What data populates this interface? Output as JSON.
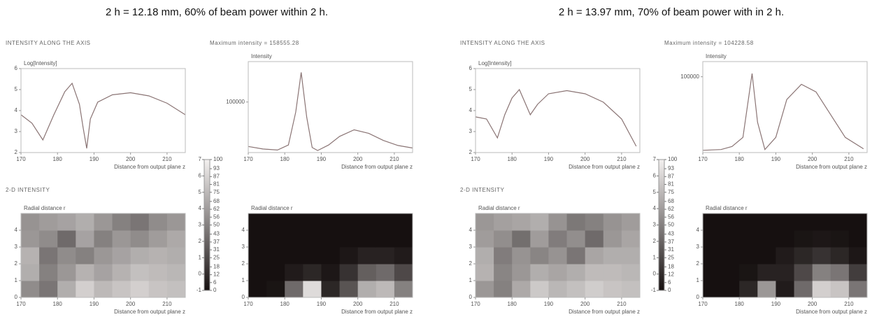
{
  "captions": [
    "2 h = 12.18 mm, 60% of beam power within 2 h.",
    "2 h = 13.97 mm, 70% of beam power with in 2 h."
  ],
  "chart_data": [
    {
      "type": "line",
      "title": "INTENSITY ALONG THE AXIS",
      "ylabel": "Log[Intensity]",
      "xlabel": "Distance from output plane z",
      "x": [
        170,
        173,
        176,
        179,
        182,
        184,
        186,
        187,
        188,
        189,
        191,
        195,
        200,
        205,
        210,
        215
      ],
      "series": [
        {
          "color": "#8a7474",
          "values": [
            3.8,
            3.4,
            2.6,
            3.8,
            4.9,
            5.3,
            4.3,
            3.2,
            2.2,
            3.6,
            4.4,
            4.75,
            4.85,
            4.7,
            4.35,
            3.8
          ]
        }
      ],
      "xlim": [
        170,
        215
      ],
      "xticks": [
        170,
        180,
        190,
        200,
        210
      ],
      "ylim": [
        2,
        6
      ],
      "yticks": [
        2,
        3,
        4,
        5,
        6
      ]
    },
    {
      "type": "line",
      "title": "Maximum intensity = 158555.28",
      "ylabel": "Intensity",
      "xlabel": "Distance from output plane z",
      "x": [
        170,
        174,
        178,
        181,
        183,
        184.5,
        186,
        187.5,
        189,
        192,
        195,
        199,
        203,
        207,
        211,
        215
      ],
      "series": [
        {
          "color": "#8a7474",
          "values": [
            12000,
            7000,
            5000,
            15000,
            80000,
            158555,
            70000,
            10000,
            4000,
            15000,
            32000,
            45000,
            38000,
            24000,
            14000,
            9000
          ]
        }
      ],
      "xlim": [
        170,
        215
      ],
      "xticks": [
        170,
        180,
        190,
        200,
        210
      ],
      "ylim": [
        0,
        180000
      ],
      "yticks": [
        100000
      ]
    },
    {
      "type": "heatmap",
      "title": "2-D INTENSITY",
      "ylabel": "Radial distance r",
      "xlabel": "Distance from output plane z",
      "xlim": [
        170,
        215
      ],
      "xticks": [
        170,
        180,
        190,
        200,
        210
      ],
      "ylim": [
        0,
        5
      ],
      "yticks": [
        0,
        1,
        2,
        3,
        4
      ],
      "zlim": [
        0,
        100
      ],
      "colormap": [
        "#161010",
        "#f4f1f0"
      ],
      "z": [
        [
          55,
          45,
          70,
          85,
          75,
          80,
          85,
          80,
          78
        ],
        [
          70,
          50,
          60,
          72,
          65,
          72,
          78,
          76,
          74
        ],
        [
          72,
          45,
          55,
          50,
          60,
          65,
          70,
          72,
          70
        ],
        [
          60,
          55,
          40,
          65,
          50,
          60,
          55,
          62,
          68
        ],
        [
          58,
          62,
          65,
          70,
          60,
          50,
          45,
          55,
          60
        ]
      ]
    },
    {
      "type": "heatmap",
      "ylabel": "Radial distance r",
      "xlabel": "Distance from output plane z",
      "xlim": [
        170,
        215
      ],
      "xticks": [
        170,
        180,
        190,
        200,
        210
      ],
      "ylim": [
        0,
        5
      ],
      "yticks": [
        0,
        1,
        2,
        3,
        4
      ],
      "zlim": [
        0,
        100
      ],
      "colormap": [
        "#161010",
        "#f4f1f0"
      ],
      "z": [
        [
          0,
          2,
          40,
          90,
          10,
          30,
          70,
          75,
          50
        ],
        [
          0,
          0,
          5,
          10,
          3,
          15,
          35,
          40,
          25
        ],
        [
          0,
          0,
          0,
          0,
          0,
          3,
          8,
          8,
          5
        ],
        [
          0,
          0,
          0,
          0,
          0,
          0,
          0,
          0,
          0
        ],
        [
          0,
          0,
          0,
          0,
          0,
          0,
          0,
          0,
          0
        ]
      ],
      "colorbar": {
        "lim": [
          0,
          100
        ],
        "ticks": [
          100,
          93,
          87,
          81,
          75,
          68,
          62,
          56,
          50,
          43,
          37,
          31,
          25,
          18,
          12,
          6,
          0
        ],
        "log_lim": [
          -1,
          7
        ],
        "log_ticks": [
          7,
          6,
          5,
          4,
          3,
          2,
          1,
          0,
          -1
        ]
      }
    },
    {
      "type": "line",
      "title": "INTENSITY ALONG THE AXIS",
      "ylabel": "Log[Intensity]",
      "xlabel": "Distance from output plane z",
      "x": [
        170,
        173,
        176,
        178,
        180,
        182,
        184,
        185,
        187,
        190,
        195,
        200,
        205,
        210,
        214
      ],
      "series": [
        {
          "color": "#8a7474",
          "values": [
            3.7,
            3.6,
            2.7,
            3.8,
            4.6,
            5.0,
            4.2,
            3.8,
            4.3,
            4.8,
            4.95,
            4.8,
            4.4,
            3.6,
            2.3
          ]
        }
      ],
      "xlim": [
        170,
        215
      ],
      "xticks": [
        170,
        180,
        190,
        200,
        210
      ],
      "ylim": [
        2,
        6
      ],
      "yticks": [
        2,
        3,
        4,
        5,
        6
      ]
    },
    {
      "type": "line",
      "title": "Maximum intensity = 104228.58",
      "ylabel": "Intensity",
      "xlabel": "Distance from output plane z",
      "x": [
        170,
        175,
        178,
        181,
        183.5,
        185,
        187,
        190,
        193,
        197,
        201,
        205,
        209,
        214
      ],
      "series": [
        {
          "color": "#8a7474",
          "values": [
            3000,
            4000,
            8000,
            20000,
            104228,
            40000,
            4000,
            20000,
            70000,
            90000,
            80000,
            50000,
            20000,
            5000
          ]
        }
      ],
      "xlim": [
        170,
        215
      ],
      "xticks": [
        170,
        180,
        190,
        200,
        210
      ],
      "ylim": [
        0,
        120000
      ],
      "yticks": [
        100000
      ]
    },
    {
      "type": "heatmap",
      "title": "2-D INTENSITY",
      "ylabel": "Radial distance r",
      "xlabel": "Distance from output plane z",
      "xlim": [
        170,
        215
      ],
      "xticks": [
        170,
        180,
        190,
        200,
        210
      ],
      "ylim": [
        0,
        5
      ],
      "yticks": [
        0,
        1,
        2,
        3,
        4
      ],
      "zlim": [
        0,
        100
      ],
      "colormap": [
        "#161010",
        "#f4f1f0"
      ],
      "z": [
        [
          60,
          50,
          68,
          82,
          74,
          78,
          84,
          80,
          78
        ],
        [
          72,
          52,
          60,
          70,
          66,
          70,
          76,
          76,
          74
        ],
        [
          70,
          48,
          58,
          52,
          58,
          45,
          66,
          70,
          70
        ],
        [
          62,
          56,
          42,
          62,
          48,
          56,
          40,
          60,
          66
        ],
        [
          60,
          64,
          66,
          70,
          58,
          46,
          50,
          58,
          62
        ]
      ]
    },
    {
      "type": "heatmap",
      "ylabel": "Radial distance r",
      "xlabel": "Distance from output plane z",
      "xlim": [
        170,
        215
      ],
      "xticks": [
        170,
        180,
        190,
        200,
        210
      ],
      "ylim": [
        0,
        5
      ],
      "yticks": [
        0,
        1,
        2,
        3,
        4
      ],
      "zlim": [
        0,
        100
      ],
      "colormap": [
        "#161010",
        "#f4f1f0"
      ],
      "z": [
        [
          0,
          0,
          10,
          60,
          5,
          40,
          85,
          80,
          45
        ],
        [
          0,
          0,
          2,
          8,
          8,
          25,
          50,
          45,
          20
        ],
        [
          0,
          0,
          0,
          0,
          5,
          10,
          15,
          10,
          3
        ],
        [
          0,
          0,
          0,
          0,
          0,
          2,
          3,
          2,
          0
        ],
        [
          0,
          0,
          0,
          0,
          0,
          0,
          0,
          0,
          0
        ]
      ],
      "colorbar": {
        "lim": [
          0,
          100
        ],
        "ticks": [
          100,
          93,
          87,
          81,
          75,
          68,
          62,
          56,
          50,
          43,
          37,
          31,
          25,
          18,
          12,
          6,
          0
        ],
        "log_lim": [
          -1,
          7
        ],
        "log_ticks": [
          7,
          6,
          5,
          4,
          3,
          2,
          1,
          0,
          -1
        ]
      }
    }
  ]
}
